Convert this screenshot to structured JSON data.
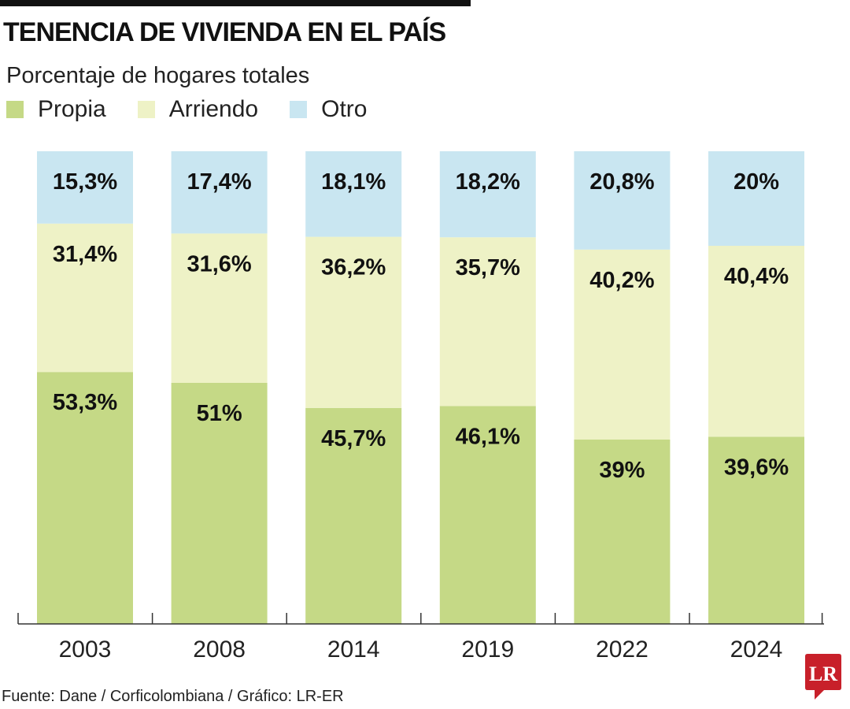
{
  "title": "TENENCIA DE VIVIENDA EN EL PAÍS",
  "subtitle": "Porcentaje de hogares totales",
  "source": "Fuente: Dane / Corficolombiana / Gráfico: LR-ER",
  "logo_text": "LR",
  "chart_data": {
    "type": "bar",
    "stacked": true,
    "categories": [
      "2003",
      "2008",
      "2014",
      "2019",
      "2022",
      "2024"
    ],
    "series": [
      {
        "name": "Propia",
        "color": "#c5d986",
        "values": [
          53.3,
          51,
          45.7,
          46.1,
          39,
          39.6
        ],
        "labels": [
          "53,3%",
          "51%",
          "45,7%",
          "46,1%",
          "39%",
          "39,6%"
        ]
      },
      {
        "name": "Arriendo",
        "color": "#eef2c6",
        "values": [
          31.4,
          31.6,
          36.2,
          35.7,
          40.2,
          40.4
        ],
        "labels": [
          "31,4%",
          "31,6%",
          "36,2%",
          "35,7%",
          "40,2%",
          "40,4%"
        ]
      },
      {
        "name": "Otro",
        "color": "#c9e6f1",
        "values": [
          15.3,
          17.4,
          18.1,
          18.2,
          20.8,
          20
        ],
        "labels": [
          "15,3%",
          "17,4%",
          "18,1%",
          "18,2%",
          "20,8%",
          "20%"
        ]
      }
    ],
    "ylim": [
      0,
      100
    ],
    "grid": false,
    "legend": "top-left"
  }
}
